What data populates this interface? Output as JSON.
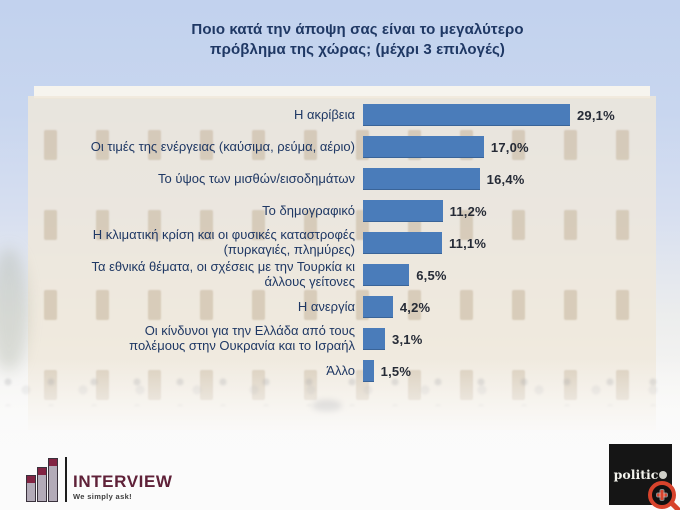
{
  "chart_data": {
    "type": "bar",
    "orientation": "horizontal",
    "title": "Ποιο κατά την άποψη σας είναι το μεγαλύτερο\nπρόβλημα της χώρας; (μέχρι 3 επιλογές)",
    "categories": [
      "Η ακρίβεια",
      "Οι τιμές της ενέργειας (καύσιμα, ρεύμα, αέριο)",
      "Το ύψος των μισθών/εισοδημάτων",
      "Το δημογραφικό",
      "Η κλιματική κρίση και οι φυσικές καταστροφές\n(πυρκαγιές, πλημύρες)",
      "Τα εθνικά θέματα, οι σχέσεις με την Τουρκία κι\nάλλους γείτονες",
      "Η ανεργία",
      "Οι κίνδυνοι για την Ελλάδα από τους\nπολέμους στην Ουκρανία και το Ισραήλ",
      "Άλλο"
    ],
    "values": [
      29.1,
      17.0,
      16.4,
      11.2,
      11.1,
      6.5,
      4.2,
      3.1,
      1.5
    ],
    "value_labels": [
      "29,1%",
      "17,0%",
      "16,4%",
      "11,2%",
      "11,1%",
      "6,5%",
      "4,2%",
      "3,1%",
      "1,5%"
    ],
    "unit": "%",
    "xlim": [
      0,
      30
    ],
    "grid": false,
    "legend": "none",
    "bar_color": "#4a7cba",
    "title_color": "#1f3864",
    "label_color": "#1f3864",
    "value_label_color": "#262b36"
  },
  "footer": {
    "interview": {
      "name": "INTERVIEW",
      "tagline": "We simply ask!",
      "brand_color": "#5f2138"
    },
    "politic": {
      "name": "politic",
      "bg_color": "#151515",
      "accent_color": "#d7432c"
    }
  },
  "background": {
    "description": "faded photo of the Hellenic Parliament building",
    "sky_color": "#c2d2ee",
    "building_color": "#efe8db"
  }
}
